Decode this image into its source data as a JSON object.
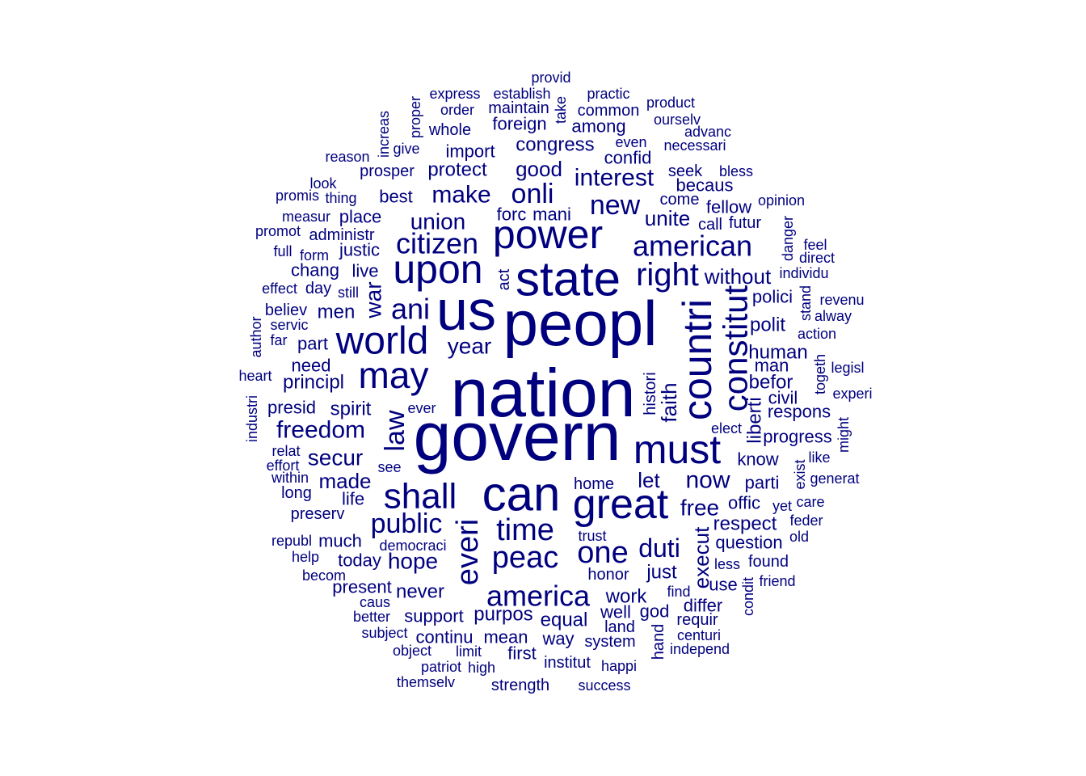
{
  "chart_data": {
    "type": "wordcloud",
    "color": "#00007f",
    "words": [
      {
        "text": "nation",
        "size": 84,
        "rot": 0
      },
      {
        "text": "govern",
        "size": 84,
        "rot": 0
      },
      {
        "text": "peopl",
        "size": 78,
        "rot": 0
      },
      {
        "text": "us",
        "size": 70,
        "rot": 0
      },
      {
        "text": "state",
        "size": 60,
        "rot": 0
      },
      {
        "text": "can",
        "size": 60,
        "rot": 0
      },
      {
        "text": "great",
        "size": 52,
        "rot": 0
      },
      {
        "text": "power",
        "size": 50,
        "rot": 0
      },
      {
        "text": "upon",
        "size": 50,
        "rot": 0
      },
      {
        "text": "must",
        "size": 50,
        "rot": 0
      },
      {
        "text": "countri",
        "size": 50,
        "rot": 90
      },
      {
        "text": "world",
        "size": 48,
        "rot": 0
      },
      {
        "text": "may",
        "size": 46,
        "rot": 0
      },
      {
        "text": "shall",
        "size": 44,
        "rot": 0
      },
      {
        "text": "constitut",
        "size": 42,
        "rot": 90
      },
      {
        "text": "right",
        "size": 40,
        "rot": 0
      },
      {
        "text": "one",
        "size": 38,
        "rot": 0
      },
      {
        "text": "peac",
        "size": 38,
        "rot": 0
      },
      {
        "text": "time",
        "size": 38,
        "rot": 0
      },
      {
        "text": "everi",
        "size": 38,
        "rot": 90
      },
      {
        "text": "american",
        "size": 36,
        "rot": 0
      },
      {
        "text": "ani",
        "size": 36,
        "rot": 0
      },
      {
        "text": "citizen",
        "size": 36,
        "rot": 0
      },
      {
        "text": "america",
        "size": 36,
        "rot": 0
      },
      {
        "text": "onli",
        "size": 34,
        "rot": 0
      },
      {
        "text": "law",
        "size": 34,
        "rot": 90
      },
      {
        "text": "public",
        "size": 34,
        "rot": 0
      },
      {
        "text": "new",
        "size": 34,
        "rot": 0
      },
      {
        "text": "duti",
        "size": 32,
        "rot": 0
      },
      {
        "text": "freedom",
        "size": 30,
        "rot": 0
      },
      {
        "text": "now",
        "size": 30,
        "rot": 0
      },
      {
        "text": "make",
        "size": 30,
        "rot": 0
      },
      {
        "text": "interest",
        "size": 30,
        "rot": 0
      },
      {
        "text": "union",
        "size": 28,
        "rot": 0
      },
      {
        "text": "hope",
        "size": 28,
        "rot": 0
      },
      {
        "text": "secur",
        "size": 28,
        "rot": 0
      },
      {
        "text": "free",
        "size": 28,
        "rot": 0
      },
      {
        "text": "year",
        "size": 28,
        "rot": 0
      },
      {
        "text": "war",
        "size": 28,
        "rot": 90
      },
      {
        "text": "faith",
        "size": 26,
        "rot": 90
      },
      {
        "text": "good",
        "size": 26,
        "rot": 0
      },
      {
        "text": "made",
        "size": 26,
        "rot": 0
      },
      {
        "text": "let",
        "size": 26,
        "rot": 0
      },
      {
        "text": "unite",
        "size": 26,
        "rot": 0
      },
      {
        "text": "without",
        "size": 26,
        "rot": 0
      },
      {
        "text": "execut",
        "size": 26,
        "rot": 90
      },
      {
        "text": "work",
        "size": 24,
        "rot": 0
      },
      {
        "text": "just",
        "size": 24,
        "rot": 0
      },
      {
        "text": "equal",
        "size": 24,
        "rot": 0
      },
      {
        "text": "purpos",
        "size": 24,
        "rot": 0
      },
      {
        "text": "never",
        "size": 24,
        "rot": 0
      },
      {
        "text": "principl",
        "size": 24,
        "rot": 0
      },
      {
        "text": "polit",
        "size": 24,
        "rot": 0
      },
      {
        "text": "human",
        "size": 24,
        "rot": 0
      },
      {
        "text": "befor",
        "size": 24,
        "rot": 0
      },
      {
        "text": "men",
        "size": 24,
        "rot": 0
      },
      {
        "text": "spirit",
        "size": 24,
        "rot": 0
      },
      {
        "text": "protect",
        "size": 24,
        "rot": 0
      },
      {
        "text": "congress",
        "size": 24,
        "rot": 0
      },
      {
        "text": "respect",
        "size": 24,
        "rot": 0
      },
      {
        "text": "liberti",
        "size": 24,
        "rot": 90
      },
      {
        "text": "respons",
        "size": 22,
        "rot": 0
      },
      {
        "text": "support",
        "size": 22,
        "rot": 0
      },
      {
        "text": "well",
        "size": 22,
        "rot": 0
      },
      {
        "text": "polici",
        "size": 22,
        "rot": 0
      },
      {
        "text": "know",
        "size": 22,
        "rot": 0
      },
      {
        "text": "parti",
        "size": 22,
        "rot": 0
      },
      {
        "text": "offic",
        "size": 22,
        "rot": 0
      },
      {
        "text": "life",
        "size": 22,
        "rot": 0
      },
      {
        "text": "need",
        "size": 22,
        "rot": 0
      },
      {
        "text": "part",
        "size": 22,
        "rot": 0
      },
      {
        "text": "best",
        "size": 22,
        "rot": 0
      },
      {
        "text": "place",
        "size": 22,
        "rot": 0
      },
      {
        "text": "justic",
        "size": 22,
        "rot": 0
      },
      {
        "text": "live",
        "size": 22,
        "rot": 0
      },
      {
        "text": "much",
        "size": 22,
        "rot": 0
      },
      {
        "text": "today",
        "size": 22,
        "rot": 0
      },
      {
        "text": "present",
        "size": 22,
        "rot": 0
      },
      {
        "text": "continu",
        "size": 22,
        "rot": 0
      },
      {
        "text": "mean",
        "size": 22,
        "rot": 0
      },
      {
        "text": "way",
        "size": 22,
        "rot": 0
      },
      {
        "text": "first",
        "size": 22,
        "rot": 0
      },
      {
        "text": "god",
        "size": 22,
        "rot": 0
      },
      {
        "text": "question",
        "size": 22,
        "rot": 0
      },
      {
        "text": "use",
        "size": 22,
        "rot": 0
      },
      {
        "text": "differ",
        "size": 22,
        "rot": 0
      },
      {
        "text": "import",
        "size": 22,
        "rot": 0
      },
      {
        "text": "confid",
        "size": 22,
        "rot": 0
      },
      {
        "text": "among",
        "size": 22,
        "rot": 0
      },
      {
        "text": "foreign",
        "size": 22,
        "rot": 0
      },
      {
        "text": "fellow",
        "size": 22,
        "rot": 0
      },
      {
        "text": "becaus",
        "size": 22,
        "rot": 0
      },
      {
        "text": "man",
        "size": 22,
        "rot": 0
      },
      {
        "text": "civil",
        "size": 22,
        "rot": 0
      },
      {
        "text": "progress",
        "size": 22,
        "rot": 0
      },
      {
        "text": "presid",
        "size": 22,
        "rot": 0
      },
      {
        "text": "forc",
        "size": 22,
        "rot": 0
      },
      {
        "text": "mani",
        "size": 22,
        "rot": 0
      },
      {
        "text": "chang",
        "size": 22,
        "rot": 0
      },
      {
        "text": "prosper",
        "size": 20,
        "rot": 0
      },
      {
        "text": "common",
        "size": 20,
        "rot": 0
      },
      {
        "text": "maintain",
        "size": 20,
        "rot": 0
      },
      {
        "text": "whole",
        "size": 20,
        "rot": 0
      },
      {
        "text": "system",
        "size": 20,
        "rot": 0
      },
      {
        "text": "land",
        "size": 20,
        "rot": 0
      },
      {
        "text": "institut",
        "size": 20,
        "rot": 0
      },
      {
        "text": "honor",
        "size": 20,
        "rot": 0
      },
      {
        "text": "home",
        "size": 20,
        "rot": 0
      },
      {
        "text": "call",
        "size": 20,
        "rot": 0
      },
      {
        "text": "futur",
        "size": 20,
        "rot": 0
      },
      {
        "text": "come",
        "size": 20,
        "rot": 0
      },
      {
        "text": "seek",
        "size": 20,
        "rot": 0
      },
      {
        "text": "day",
        "size": 20,
        "rot": 0
      },
      {
        "text": "administr",
        "size": 20,
        "rot": 0
      },
      {
        "text": "believ",
        "size": 20,
        "rot": 0
      },
      {
        "text": "preserv",
        "size": 20,
        "rot": 0
      },
      {
        "text": "long",
        "size": 20,
        "rot": 0
      },
      {
        "text": "strength",
        "size": 20,
        "rot": 0
      },
      {
        "text": "requir",
        "size": 20,
        "rot": 0
      },
      {
        "text": "found",
        "size": 20,
        "rot": 0
      },
      {
        "text": "hand",
        "size": 20,
        "rot": 90
      },
      {
        "text": "histori",
        "size": 20,
        "rot": 90
      },
      {
        "text": "act",
        "size": 20,
        "rot": 90
      },
      {
        "text": "order",
        "size": 18,
        "rot": 0
      },
      {
        "text": "establish",
        "size": 18,
        "rot": 0
      },
      {
        "text": "express",
        "size": 18,
        "rot": 0
      },
      {
        "text": "practic",
        "size": 18,
        "rot": 0
      },
      {
        "text": "provid",
        "size": 18,
        "rot": 0
      },
      {
        "text": "ourselv",
        "size": 18,
        "rot": 0
      },
      {
        "text": "necessari",
        "size": 18,
        "rot": 0
      },
      {
        "text": "give",
        "size": 18,
        "rot": 0
      },
      {
        "text": "reason",
        "size": 18,
        "rot": 0
      },
      {
        "text": "thing",
        "size": 18,
        "rot": 0
      },
      {
        "text": "measur",
        "size": 18,
        "rot": 0
      },
      {
        "text": "promot",
        "size": 18,
        "rot": 0
      },
      {
        "text": "form",
        "size": 18,
        "rot": 0
      },
      {
        "text": "full",
        "size": 18,
        "rot": 0
      },
      {
        "text": "effect",
        "size": 18,
        "rot": 0
      },
      {
        "text": "still",
        "size": 18,
        "rot": 0
      },
      {
        "text": "servic",
        "size": 18,
        "rot": 0
      },
      {
        "text": "far",
        "size": 18,
        "rot": 0
      },
      {
        "text": "heart",
        "size": 18,
        "rot": 0
      },
      {
        "text": "effort",
        "size": 18,
        "rot": 0
      },
      {
        "text": "within",
        "size": 18,
        "rot": 0
      },
      {
        "text": "relat",
        "size": 18,
        "rot": 0
      },
      {
        "text": "help",
        "size": 18,
        "rot": 0
      },
      {
        "text": "republ",
        "size": 18,
        "rot": 0
      },
      {
        "text": "becom",
        "size": 18,
        "rot": 0
      },
      {
        "text": "caus",
        "size": 18,
        "rot": 0
      },
      {
        "text": "better",
        "size": 18,
        "rot": 0
      },
      {
        "text": "subject",
        "size": 18,
        "rot": 0
      },
      {
        "text": "object",
        "size": 18,
        "rot": 0
      },
      {
        "text": "limit",
        "size": 18,
        "rot": 0
      },
      {
        "text": "patriot",
        "size": 18,
        "rot": 0
      },
      {
        "text": "high",
        "size": 18,
        "rot": 0
      },
      {
        "text": "themselv",
        "size": 18,
        "rot": 0
      },
      {
        "text": "success",
        "size": 18,
        "rot": 0
      },
      {
        "text": "happi",
        "size": 18,
        "rot": 0
      },
      {
        "text": "independ",
        "size": 18,
        "rot": 0
      },
      {
        "text": "centuri",
        "size": 18,
        "rot": 0
      },
      {
        "text": "less",
        "size": 18,
        "rot": 0
      },
      {
        "text": "friend",
        "size": 18,
        "rot": 0
      },
      {
        "text": "yet",
        "size": 18,
        "rot": 0
      },
      {
        "text": "care",
        "size": 18,
        "rot": 0
      },
      {
        "text": "feder",
        "size": 18,
        "rot": 0
      },
      {
        "text": "old",
        "size": 18,
        "rot": 0
      },
      {
        "text": "like",
        "size": 18,
        "rot": 0
      },
      {
        "text": "generat",
        "size": 18,
        "rot": 0
      },
      {
        "text": "experi",
        "size": 18,
        "rot": 0
      },
      {
        "text": "legisl",
        "size": 18,
        "rot": 0
      },
      {
        "text": "action",
        "size": 18,
        "rot": 0
      },
      {
        "text": "alway",
        "size": 18,
        "rot": 0
      },
      {
        "text": "revenu",
        "size": 18,
        "rot": 0
      },
      {
        "text": "individu",
        "size": 18,
        "rot": 0
      },
      {
        "text": "direct",
        "size": 18,
        "rot": 0
      },
      {
        "text": "feel",
        "size": 18,
        "rot": 0
      },
      {
        "text": "opinion",
        "size": 18,
        "rot": 0
      },
      {
        "text": "bless",
        "size": 18,
        "rot": 0
      },
      {
        "text": "advanc",
        "size": 18,
        "rot": 0
      },
      {
        "text": "product",
        "size": 18,
        "rot": 0
      },
      {
        "text": "even",
        "size": 18,
        "rot": 0
      },
      {
        "text": "look",
        "size": 18,
        "rot": 0
      },
      {
        "text": "promis",
        "size": 18,
        "rot": 0
      },
      {
        "text": "ever",
        "size": 18,
        "rot": 0
      },
      {
        "text": "see",
        "size": 18,
        "rot": 0
      },
      {
        "text": "democraci",
        "size": 18,
        "rot": 0
      },
      {
        "text": "trust",
        "size": 18,
        "rot": 0
      },
      {
        "text": "elect",
        "size": 18,
        "rot": 0
      },
      {
        "text": "find",
        "size": 18,
        "rot": 0
      },
      {
        "text": "increas",
        "size": 18,
        "rot": 90
      },
      {
        "text": "proper",
        "size": 18,
        "rot": 90
      },
      {
        "text": "take",
        "size": 18,
        "rot": 90
      },
      {
        "text": "author",
        "size": 18,
        "rot": 90
      },
      {
        "text": "industri",
        "size": 18,
        "rot": 90
      },
      {
        "text": "danger",
        "size": 18,
        "rot": 90
      },
      {
        "text": "stand",
        "size": 18,
        "rot": 90
      },
      {
        "text": "togeth",
        "size": 18,
        "rot": 90
      },
      {
        "text": "might",
        "size": 18,
        "rot": 90
      },
      {
        "text": "exist",
        "size": 18,
        "rot": 90
      },
      {
        "text": "condit",
        "size": 18,
        "rot": 90
      }
    ]
  }
}
